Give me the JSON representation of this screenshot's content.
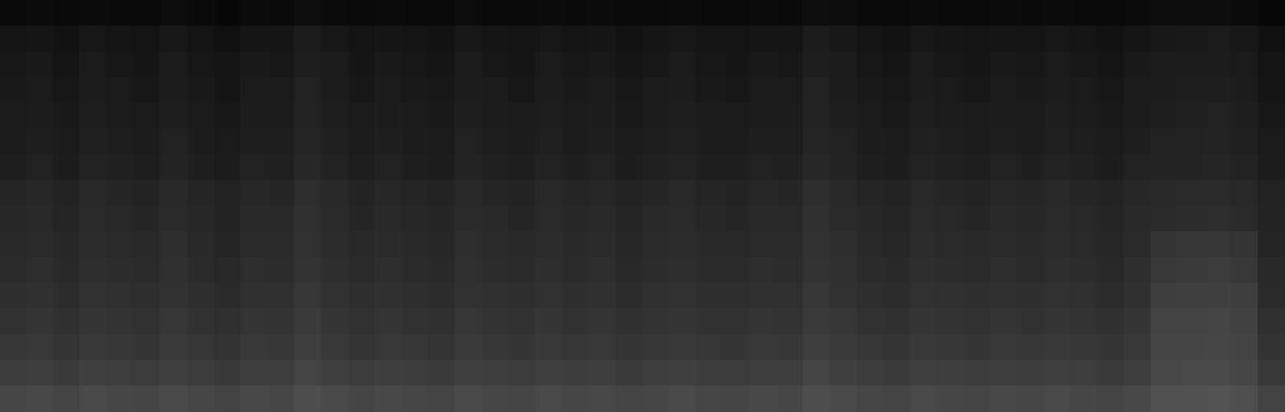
{
  "chart_data": {
    "type": "heatmap",
    "tick_labels": false,
    "cells": [
      [
        10,
        11,
        9,
        11,
        10,
        9,
        12,
        10,
        8,
        11,
        10,
        14,
        11,
        9,
        11,
        10,
        9,
        12,
        10,
        9,
        11,
        10,
        11,
        9,
        10,
        11,
        10,
        9,
        11,
        10,
        14,
        12,
        10,
        9,
        11,
        10,
        9,
        11,
        10,
        11,
        10,
        9,
        11,
        12,
        12,
        13,
        11,
        8
      ],
      [
        20,
        22,
        18,
        23,
        21,
        19,
        24,
        20,
        17,
        22,
        21,
        28,
        23,
        19,
        22,
        20,
        18,
        24,
        21,
        19,
        23,
        20,
        22,
        18,
        21,
        23,
        20,
        19,
        22,
        21,
        28,
        24,
        20,
        18,
        23,
        21,
        19,
        22,
        20,
        23,
        21,
        18,
        22,
        24,
        25,
        26,
        23,
        17
      ],
      [
        23,
        25,
        21,
        26,
        24,
        22,
        27,
        23,
        20,
        25,
        24,
        31,
        26,
        22,
        25,
        23,
        21,
        27,
        24,
        22,
        26,
        23,
        25,
        21,
        24,
        26,
        23,
        22,
        25,
        24,
        31,
        27,
        23,
        21,
        26,
        24,
        22,
        25,
        23,
        26,
        24,
        21,
        25,
        27,
        28,
        29,
        26,
        20
      ],
      [
        25,
        27,
        23,
        28,
        26,
        24,
        29,
        25,
        22,
        27,
        26,
        33,
        28,
        24,
        27,
        25,
        23,
        29,
        26,
        24,
        28,
        25,
        27,
        23,
        26,
        28,
        25,
        24,
        27,
        26,
        33,
        29,
        25,
        23,
        28,
        26,
        24,
        27,
        25,
        28,
        26,
        23,
        27,
        29,
        30,
        31,
        28,
        22
      ],
      [
        27,
        29,
        25,
        30,
        28,
        26,
        31,
        27,
        24,
        29,
        28,
        35,
        30,
        26,
        29,
        27,
        25,
        31,
        28,
        26,
        30,
        27,
        29,
        25,
        28,
        30,
        27,
        26,
        29,
        28,
        35,
        31,
        27,
        25,
        30,
        28,
        26,
        29,
        27,
        30,
        28,
        25,
        29,
        31,
        32,
        33,
        30,
        24
      ],
      [
        29,
        31,
        27,
        32,
        30,
        28,
        33,
        29,
        26,
        31,
        30,
        37,
        32,
        28,
        31,
        29,
        27,
        33,
        30,
        28,
        32,
        29,
        31,
        27,
        30,
        32,
        29,
        28,
        31,
        30,
        37,
        33,
        29,
        27,
        32,
        30,
        28,
        31,
        29,
        32,
        30,
        27,
        31,
        33,
        34,
        35,
        32,
        26
      ],
      [
        31,
        33,
        29,
        34,
        32,
        30,
        35,
        31,
        28,
        33,
        32,
        39,
        34,
        30,
        33,
        31,
        29,
        35,
        32,
        30,
        34,
        31,
        33,
        29,
        32,
        34,
        31,
        30,
        33,
        32,
        39,
        35,
        31,
        29,
        34,
        32,
        30,
        33,
        31,
        34,
        32,
        29,
        33,
        35,
        36,
        37,
        34,
        28
      ],
      [
        37,
        39,
        35,
        40,
        38,
        36,
        41,
        37,
        34,
        39,
        38,
        45,
        40,
        36,
        39,
        37,
        35,
        41,
        38,
        36,
        40,
        37,
        39,
        35,
        38,
        40,
        37,
        36,
        39,
        38,
        45,
        41,
        37,
        35,
        40,
        38,
        36,
        39,
        37,
        40,
        38,
        35,
        39,
        41,
        42,
        43,
        40,
        34
      ],
      [
        39,
        41,
        37,
        42,
        40,
        38,
        43,
        39,
        36,
        41,
        40,
        47,
        42,
        38,
        41,
        39,
        37,
        43,
        40,
        38,
        42,
        39,
        41,
        37,
        40,
        42,
        39,
        38,
        41,
        40,
        47,
        43,
        39,
        37,
        42,
        40,
        38,
        41,
        39,
        42,
        40,
        37,
        41,
        43,
        44,
        45,
        42,
        36
      ],
      [
        41,
        43,
        39,
        44,
        42,
        40,
        45,
        41,
        38,
        43,
        42,
        49,
        44,
        40,
        43,
        41,
        39,
        45,
        42,
        40,
        44,
        41,
        43,
        39,
        42,
        44,
        41,
        40,
        43,
        42,
        49,
        45,
        41,
        39,
        44,
        42,
        40,
        43,
        41,
        44,
        42,
        39,
        43,
        53,
        54,
        55,
        52,
        38
      ],
      [
        43,
        45,
        41,
        46,
        44,
        42,
        47,
        43,
        40,
        45,
        44,
        51,
        46,
        42,
        45,
        43,
        41,
        47,
        44,
        42,
        46,
        43,
        45,
        41,
        44,
        46,
        43,
        42,
        45,
        44,
        51,
        47,
        43,
        41,
        46,
        44,
        42,
        45,
        43,
        46,
        44,
        41,
        45,
        57,
        58,
        59,
        56,
        40
      ],
      [
        46,
        48,
        44,
        49,
        47,
        45,
        50,
        46,
        43,
        48,
        47,
        54,
        49,
        45,
        48,
        46,
        44,
        50,
        47,
        45,
        49,
        46,
        48,
        44,
        47,
        49,
        46,
        45,
        48,
        47,
        54,
        50,
        46,
        44,
        49,
        47,
        45,
        48,
        46,
        49,
        47,
        44,
        48,
        62,
        63,
        64,
        61,
        43
      ],
      [
        50,
        52,
        48,
        53,
        51,
        49,
        54,
        50,
        47,
        52,
        51,
        58,
        53,
        49,
        52,
        50,
        48,
        54,
        51,
        49,
        53,
        50,
        52,
        48,
        51,
        53,
        50,
        49,
        52,
        51,
        58,
        54,
        50,
        48,
        53,
        51,
        49,
        52,
        50,
        53,
        51,
        48,
        52,
        66,
        67,
        68,
        65,
        47
      ],
      [
        54,
        56,
        52,
        57,
        55,
        53,
        58,
        54,
        51,
        56,
        55,
        62,
        57,
        53,
        56,
        54,
        52,
        58,
        55,
        53,
        57,
        54,
        56,
        52,
        55,
        57,
        54,
        53,
        56,
        55,
        62,
        58,
        54,
        52,
        57,
        55,
        53,
        56,
        54,
        57,
        55,
        52,
        56,
        68,
        69,
        70,
        67,
        51
      ],
      [
        60,
        62,
        58,
        63,
        61,
        59,
        64,
        60,
        57,
        62,
        61,
        68,
        63,
        59,
        62,
        60,
        58,
        64,
        61,
        59,
        63,
        60,
        62,
        58,
        61,
        63,
        60,
        59,
        62,
        61,
        68,
        64,
        60,
        58,
        63,
        61,
        59,
        62,
        60,
        63,
        61,
        58,
        62,
        72,
        73,
        74,
        71,
        57
      ],
      [
        70,
        72,
        68,
        73,
        71,
        69,
        74,
        70,
        67,
        72,
        71,
        78,
        73,
        69,
        72,
        70,
        68,
        74,
        71,
        69,
        73,
        70,
        72,
        68,
        71,
        73,
        70,
        69,
        72,
        71,
        78,
        74,
        70,
        68,
        73,
        71,
        69,
        72,
        70,
        73,
        71,
        68,
        72,
        80,
        81,
        82,
        79,
        67
      ]
    ]
  }
}
